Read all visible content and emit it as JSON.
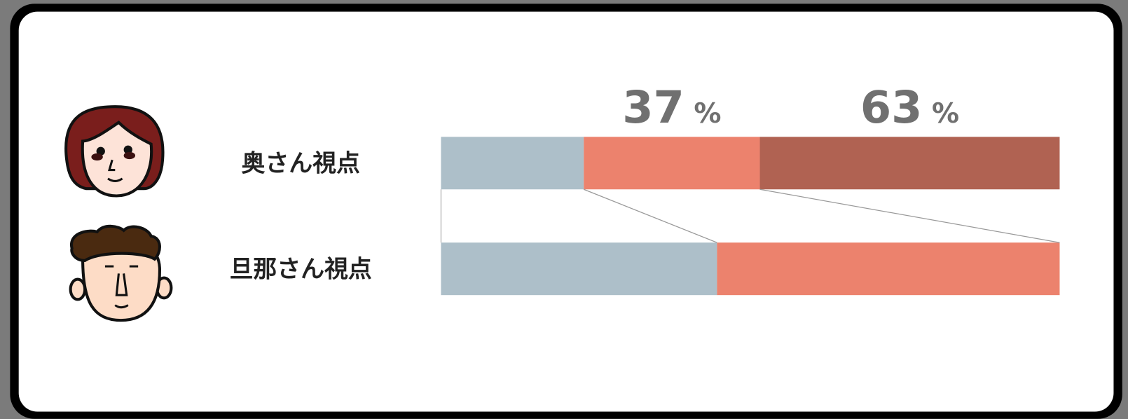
{
  "chart_data": {
    "type": "bar",
    "orientation": "horizontal",
    "stacked": true,
    "categories": [
      "奥さん視点",
      "旦那さん視点"
    ],
    "series": [
      {
        "color": "#adbfc9",
        "values": [
          30,
          58
        ]
      },
      {
        "color": "#ec826d",
        "values": [
          37,
          72
        ],
        "value_labels": [
          "37 %",
          null
        ]
      },
      {
        "color": "#b06252",
        "values": [
          63,
          null
        ],
        "value_labels": [
          "63 %",
          null
        ]
      }
    ]
  }
}
